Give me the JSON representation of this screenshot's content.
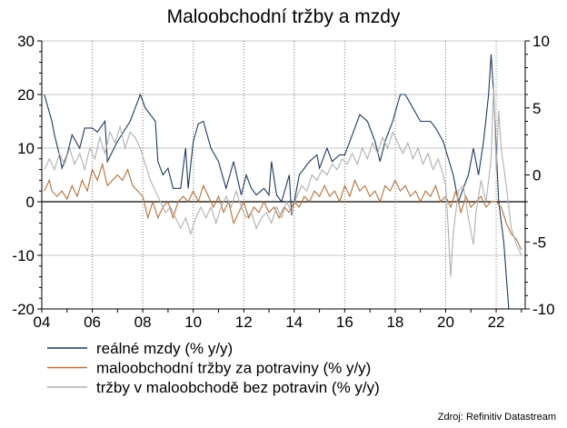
{
  "chart_data": {
    "type": "line",
    "title": "Maloobchodní tržby a mzdy",
    "x_range": [
      2004,
      2023.15
    ],
    "x_ticks": [
      "04",
      "06",
      "08",
      "10",
      "12",
      "14",
      "16",
      "18",
      "20",
      "22"
    ],
    "y_left": {
      "range": [
        -20,
        30
      ],
      "ticks": [
        "30",
        "20",
        "10",
        "0",
        "-10",
        "-20"
      ]
    },
    "y_right": {
      "range": [
        -10,
        10
      ],
      "ticks": [
        "10",
        "5",
        "0",
        "-5",
        "-10"
      ]
    },
    "series": [
      {
        "name": "reálné mzdy (% y/y)",
        "axis": "right",
        "color": "#1f3a5c",
        "points": [
          [
            2004.1,
            6
          ],
          [
            2004.4,
            4
          ],
          [
            2004.5,
            3
          ],
          [
            2004.7,
            1.5
          ],
          [
            2004.8,
            0.5
          ],
          [
            2005.0,
            1.5
          ],
          [
            2005.2,
            3
          ],
          [
            2005.5,
            2
          ],
          [
            2005.7,
            3.5
          ],
          [
            2006.0,
            3.5
          ],
          [
            2006.2,
            3.2
          ],
          [
            2006.5,
            4
          ],
          [
            2006.6,
            1
          ],
          [
            2007.0,
            2.5
          ],
          [
            2007.5,
            4
          ],
          [
            2007.8,
            5.5
          ],
          [
            2007.9,
            6
          ],
          [
            2008.1,
            5
          ],
          [
            2008.5,
            4
          ],
          [
            2008.6,
            1
          ],
          [
            2008.8,
            0
          ],
          [
            2009.0,
            0.5
          ],
          [
            2009.2,
            -1
          ],
          [
            2009.5,
            -1
          ],
          [
            2009.7,
            2
          ],
          [
            2009.8,
            -1
          ],
          [
            2010.0,
            2.5
          ],
          [
            2010.2,
            3.8
          ],
          [
            2010.4,
            4
          ],
          [
            2010.7,
            2
          ],
          [
            2011.0,
            1
          ],
          [
            2011.3,
            -1
          ],
          [
            2011.6,
            1
          ],
          [
            2011.9,
            -1.5
          ],
          [
            2012.1,
            0
          ],
          [
            2012.3,
            -1
          ],
          [
            2012.5,
            -1.5
          ],
          [
            2012.8,
            -1
          ],
          [
            2013.0,
            -1.5
          ],
          [
            2013.1,
            1
          ],
          [
            2013.3,
            -1.5
          ],
          [
            2013.5,
            -2
          ],
          [
            2013.8,
            0
          ],
          [
            2013.9,
            -3
          ],
          [
            2014.2,
            0
          ],
          [
            2014.6,
            1
          ],
          [
            2014.9,
            1.5
          ],
          [
            2015.0,
            0.5
          ],
          [
            2015.3,
            2
          ],
          [
            2015.5,
            1
          ],
          [
            2015.8,
            1.5
          ],
          [
            2016.0,
            1.5
          ],
          [
            2016.3,
            3
          ],
          [
            2016.6,
            4.5
          ],
          [
            2016.9,
            4
          ],
          [
            2017.2,
            2.5
          ],
          [
            2017.4,
            1
          ],
          [
            2017.6,
            2.5
          ],
          [
            2017.9,
            4
          ],
          [
            2018.2,
            6
          ],
          [
            2018.4,
            6
          ],
          [
            2018.7,
            5
          ],
          [
            2019.0,
            4
          ],
          [
            2019.4,
            4
          ],
          [
            2019.6,
            3.5
          ],
          [
            2019.9,
            2.5
          ],
          [
            2020.3,
            0
          ],
          [
            2020.5,
            -2
          ],
          [
            2020.7,
            -1
          ],
          [
            2020.9,
            0
          ],
          [
            2021.1,
            2
          ],
          [
            2021.3,
            0
          ],
          [
            2021.5,
            2.5
          ],
          [
            2021.7,
            6
          ],
          [
            2021.8,
            9
          ],
          [
            2021.9,
            6
          ],
          [
            2022.0,
            2
          ],
          [
            2022.1,
            -2
          ],
          [
            2022.3,
            -5
          ],
          [
            2022.5,
            -10
          ],
          [
            2022.7,
            -10
          ]
        ]
      },
      {
        "name": "maloobchodní tržby za potraviny (% y/y)",
        "axis": "left",
        "color": "#b5713c",
        "points": [
          [
            2004.1,
            2
          ],
          [
            2004.3,
            4
          ],
          [
            2004.4,
            2
          ],
          [
            2004.6,
            1
          ],
          [
            2004.8,
            2
          ],
          [
            2005.0,
            0.5
          ],
          [
            2005.2,
            3
          ],
          [
            2005.4,
            1
          ],
          [
            2005.6,
            4
          ],
          [
            2005.8,
            2
          ],
          [
            2006.0,
            6
          ],
          [
            2006.2,
            4
          ],
          [
            2006.4,
            7
          ],
          [
            2006.6,
            3
          ],
          [
            2006.8,
            4
          ],
          [
            2007.0,
            5
          ],
          [
            2007.2,
            4
          ],
          [
            2007.4,
            6
          ],
          [
            2007.6,
            3
          ],
          [
            2007.8,
            2
          ],
          [
            2008.0,
            1
          ],
          [
            2008.2,
            -3
          ],
          [
            2008.4,
            0
          ],
          [
            2008.6,
            -3
          ],
          [
            2008.8,
            -1
          ],
          [
            2009.0,
            0
          ],
          [
            2009.2,
            -3
          ],
          [
            2009.4,
            0
          ],
          [
            2009.6,
            1
          ],
          [
            2009.8,
            0
          ],
          [
            2010.0,
            2
          ],
          [
            2010.2,
            0
          ],
          [
            2010.4,
            3
          ],
          [
            2010.6,
            1
          ],
          [
            2010.8,
            -1
          ],
          [
            2011.0,
            1
          ],
          [
            2011.2,
            -2
          ],
          [
            2011.4,
            0
          ],
          [
            2011.6,
            -4
          ],
          [
            2011.8,
            -2
          ],
          [
            2012.0,
            0
          ],
          [
            2012.2,
            -3
          ],
          [
            2012.4,
            -1
          ],
          [
            2012.6,
            -2
          ],
          [
            2012.8,
            0
          ],
          [
            2013.0,
            -2
          ],
          [
            2013.2,
            -1
          ],
          [
            2013.4,
            -3
          ],
          [
            2013.6,
            -1
          ],
          [
            2013.8,
            -2
          ],
          [
            2014.0,
            0
          ],
          [
            2014.2,
            -1
          ],
          [
            2014.4,
            1
          ],
          [
            2014.6,
            0
          ],
          [
            2014.8,
            2
          ],
          [
            2015.0,
            1
          ],
          [
            2015.2,
            3
          ],
          [
            2015.4,
            1
          ],
          [
            2015.6,
            2
          ],
          [
            2015.8,
            0
          ],
          [
            2016.0,
            3
          ],
          [
            2016.2,
            1
          ],
          [
            2016.4,
            4
          ],
          [
            2016.6,
            2
          ],
          [
            2016.8,
            3
          ],
          [
            2017.0,
            1
          ],
          [
            2017.2,
            2
          ],
          [
            2017.4,
            0
          ],
          [
            2017.6,
            3
          ],
          [
            2017.8,
            2
          ],
          [
            2018.0,
            4
          ],
          [
            2018.2,
            2
          ],
          [
            2018.4,
            3
          ],
          [
            2018.6,
            1
          ],
          [
            2018.8,
            2
          ],
          [
            2019.0,
            0
          ],
          [
            2019.2,
            2
          ],
          [
            2019.4,
            1
          ],
          [
            2019.6,
            3
          ],
          [
            2019.8,
            0
          ],
          [
            2020.0,
            1
          ],
          [
            2020.2,
            -1
          ],
          [
            2020.4,
            2
          ],
          [
            2020.6,
            -2
          ],
          [
            2020.8,
            1
          ],
          [
            2021.0,
            -1
          ],
          [
            2021.2,
            0
          ],
          [
            2021.4,
            1
          ],
          [
            2021.6,
            -1
          ],
          [
            2021.8,
            0
          ],
          [
            2022.0,
            0
          ],
          [
            2022.2,
            -1
          ],
          [
            2022.4,
            -4
          ],
          [
            2022.6,
            -6
          ],
          [
            2022.8,
            -7
          ],
          [
            2023.0,
            -9
          ]
        ]
      },
      {
        "name": "tržby v maloobchodě bez potravin (% y/y)",
        "axis": "left",
        "color": "#b0b0b0",
        "points": [
          [
            2004.1,
            6
          ],
          [
            2004.3,
            8
          ],
          [
            2004.5,
            6
          ],
          [
            2004.7,
            9
          ],
          [
            2004.9,
            7
          ],
          [
            2005.1,
            10
          ],
          [
            2005.3,
            7
          ],
          [
            2005.5,
            9
          ],
          [
            2005.7,
            6
          ],
          [
            2005.9,
            10
          ],
          [
            2006.1,
            8
          ],
          [
            2006.3,
            12
          ],
          [
            2006.5,
            9
          ],
          [
            2006.7,
            13
          ],
          [
            2006.9,
            11
          ],
          [
            2007.1,
            14
          ],
          [
            2007.3,
            10
          ],
          [
            2007.5,
            13
          ],
          [
            2007.7,
            12
          ],
          [
            2007.9,
            10
          ],
          [
            2008.1,
            7
          ],
          [
            2008.3,
            4
          ],
          [
            2008.5,
            2
          ],
          [
            2008.7,
            0
          ],
          [
            2008.9,
            -2
          ],
          [
            2009.1,
            -1
          ],
          [
            2009.3,
            -3
          ],
          [
            2009.5,
            -5
          ],
          [
            2009.7,
            -3
          ],
          [
            2009.9,
            -6
          ],
          [
            2010.1,
            -3
          ],
          [
            2010.3,
            -1
          ],
          [
            2010.5,
            -3
          ],
          [
            2010.7,
            -1
          ],
          [
            2010.9,
            -4
          ],
          [
            2011.1,
            -1
          ],
          [
            2011.3,
            1
          ],
          [
            2011.5,
            -1
          ],
          [
            2011.7,
            2
          ],
          [
            2011.9,
            -1
          ],
          [
            2012.1,
            -3
          ],
          [
            2012.3,
            -2
          ],
          [
            2012.5,
            -5
          ],
          [
            2012.7,
            -3
          ],
          [
            2012.9,
            -2
          ],
          [
            2013.1,
            -4
          ],
          [
            2013.3,
            -1
          ],
          [
            2013.5,
            -3
          ],
          [
            2013.7,
            0
          ],
          [
            2013.9,
            -2
          ],
          [
            2014.1,
            1
          ],
          [
            2014.3,
            3
          ],
          [
            2014.5,
            2
          ],
          [
            2014.7,
            5
          ],
          [
            2014.9,
            4
          ],
          [
            2015.1,
            6
          ],
          [
            2015.3,
            5
          ],
          [
            2015.5,
            7
          ],
          [
            2015.7,
            6
          ],
          [
            2015.9,
            8
          ],
          [
            2016.1,
            7
          ],
          [
            2016.3,
            9
          ],
          [
            2016.5,
            7
          ],
          [
            2016.7,
            10
          ],
          [
            2016.9,
            8
          ],
          [
            2017.1,
            11
          ],
          [
            2017.3,
            9
          ],
          [
            2017.5,
            12
          ],
          [
            2017.7,
            10
          ],
          [
            2017.9,
            13
          ],
          [
            2018.1,
            11
          ],
          [
            2018.3,
            9
          ],
          [
            2018.5,
            11
          ],
          [
            2018.7,
            8
          ],
          [
            2018.9,
            10
          ],
          [
            2019.1,
            7
          ],
          [
            2019.3,
            9
          ],
          [
            2019.5,
            6
          ],
          [
            2019.7,
            8
          ],
          [
            2019.9,
            5
          ],
          [
            2020.0,
            3
          ],
          [
            2020.1,
            -5
          ],
          [
            2020.2,
            -14
          ],
          [
            2020.3,
            -6
          ],
          [
            2020.5,
            2
          ],
          [
            2020.7,
            3
          ],
          [
            2020.9,
            -3
          ],
          [
            2021.1,
            -8
          ],
          [
            2021.2,
            -2
          ],
          [
            2021.4,
            4
          ],
          [
            2021.6,
            0
          ],
          [
            2021.8,
            8
          ],
          [
            2021.9,
            22
          ],
          [
            2022.0,
            6
          ],
          [
            2022.1,
            17
          ],
          [
            2022.2,
            10
          ],
          [
            2022.4,
            3
          ],
          [
            2022.6,
            -5
          ],
          [
            2022.8,
            -8
          ],
          [
            2023.0,
            -10
          ]
        ]
      }
    ],
    "source": "Zdroj: Refinitiv Datastream",
    "grid": "vertical dotted at x ticks, horizontal solid at left y ticks",
    "legend_position": "bottom-left"
  }
}
